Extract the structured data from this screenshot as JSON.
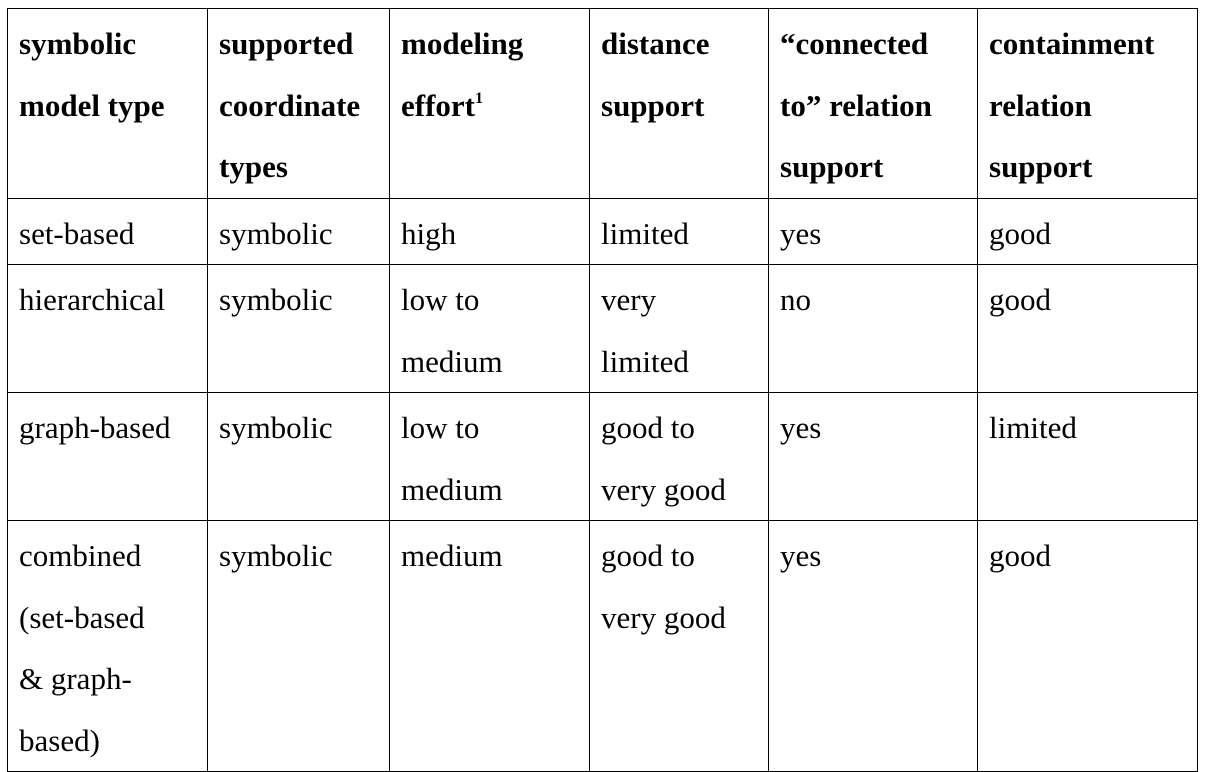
{
  "table": {
    "columns": [
      {
        "lines": [
          "symbolic",
          "model type"
        ]
      },
      {
        "lines": [
          "supported",
          "coordinate",
          "types"
        ]
      },
      {
        "lines": [
          "modeling",
          "effort"
        ],
        "sup": "1"
      },
      {
        "lines": [
          "distance",
          "support"
        ]
      },
      {
        "lines": [
          "“connected",
          "to” relation",
          "support"
        ]
      },
      {
        "lines": [
          "containment",
          "relation",
          "support"
        ]
      }
    ],
    "rows": [
      [
        [
          "set-based"
        ],
        [
          "symbolic"
        ],
        [
          "high"
        ],
        [
          "limited"
        ],
        [
          "yes"
        ],
        [
          "good"
        ]
      ],
      [
        [
          "hierarchical"
        ],
        [
          "symbolic"
        ],
        [
          "low to",
          "medium"
        ],
        [
          "very",
          "limited"
        ],
        [
          "no"
        ],
        [
          "good"
        ]
      ],
      [
        [
          "graph-based"
        ],
        [
          "symbolic"
        ],
        [
          "low to",
          "medium"
        ],
        [
          "good to",
          "very good"
        ],
        [
          "yes"
        ],
        [
          "limited"
        ]
      ],
      [
        [
          "combined",
          "(set-based",
          "& graph-",
          "based)"
        ],
        [
          "symbolic"
        ],
        [
          "medium"
        ],
        [
          "good to",
          "very good"
        ],
        [
          "yes"
        ],
        [
          "good"
        ]
      ]
    ]
  }
}
